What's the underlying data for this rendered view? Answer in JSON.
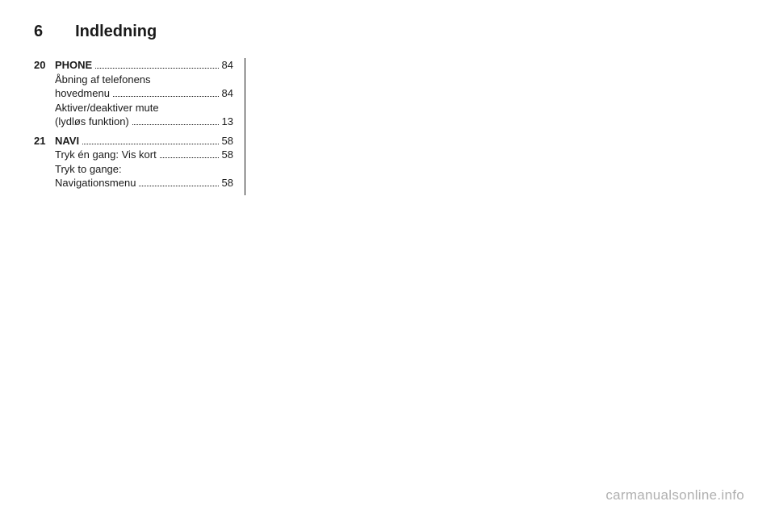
{
  "header": {
    "page_number": "6",
    "chapter": "Indledning"
  },
  "entries": [
    {
      "num": "20",
      "lines": [
        {
          "label": "PHONE",
          "bold": true,
          "page": "84"
        },
        {
          "label": "Åbning af telefonens",
          "bold": false,
          "page": null
        },
        {
          "label": "hovedmenu",
          "bold": false,
          "page": "84"
        },
        {
          "label": "Aktiver/deaktiver mute",
          "bold": false,
          "page": null
        },
        {
          "label": "(lydløs funktion)",
          "bold": false,
          "page": "13"
        }
      ]
    },
    {
      "num": "21",
      "lines": [
        {
          "label": "NAVI",
          "bold": true,
          "page": "58"
        },
        {
          "label": "Tryk én gang: Vis kort",
          "bold": false,
          "page": "58"
        },
        {
          "label": "Tryk to gange:",
          "bold": false,
          "page": null
        },
        {
          "label": "Navigationsmenu",
          "bold": false,
          "page": "58"
        }
      ]
    }
  ],
  "watermark": "carmanualsonline.info"
}
